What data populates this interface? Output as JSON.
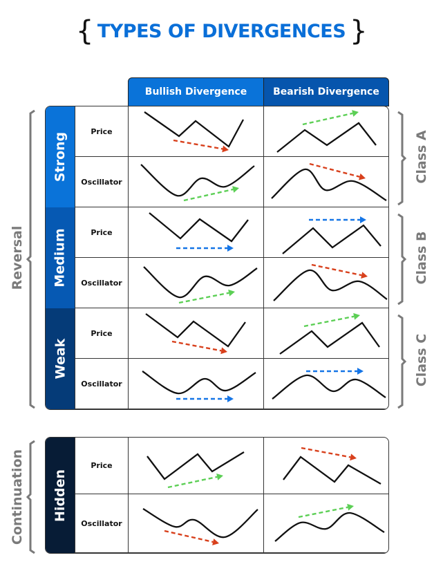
{
  "title": "TYPES OF DIVERGENCES",
  "columns": [
    "Bullish Divergence",
    "Bearish Divergence"
  ],
  "column_colors": [
    "#0a73d9",
    "#0655ad"
  ],
  "row_types": [
    "Price",
    "Oscillator"
  ],
  "groups": {
    "left": [
      "Reversal",
      "Continuation"
    ],
    "right": [
      "Class A",
      "Class B",
      "Class C"
    ]
  },
  "rows": [
    {
      "label": "Strong",
      "color": "#0a73d9",
      "arrows": {
        "bullish_price": "red-down",
        "bullish_oscillator": "green-up",
        "bearish_price": "green-up",
        "bearish_oscillator": "red-down"
      }
    },
    {
      "label": "Medium",
      "color": "#0659b3",
      "arrows": {
        "bullish_price": "blue-flat",
        "bullish_oscillator": "green-up",
        "bearish_price": "blue-flat",
        "bearish_oscillator": "red-down"
      }
    },
    {
      "label": "Weak",
      "color": "#053b78",
      "arrows": {
        "bullish_price": "red-down",
        "bullish_oscillator": "blue-flat",
        "bearish_price": "green-up",
        "bearish_oscillator": "blue-flat"
      }
    },
    {
      "label": "Hidden",
      "color": "#071c36",
      "arrows": {
        "bullish_price": "green-up",
        "bullish_oscillator": "red-down",
        "bearish_price": "red-down",
        "bearish_oscillator": "green-up"
      }
    }
  ],
  "arrow_colors": {
    "green": "#5ccf55",
    "red": "#d8401c",
    "blue": "#1575e6"
  },
  "text_color_title": "#0a6fd8"
}
